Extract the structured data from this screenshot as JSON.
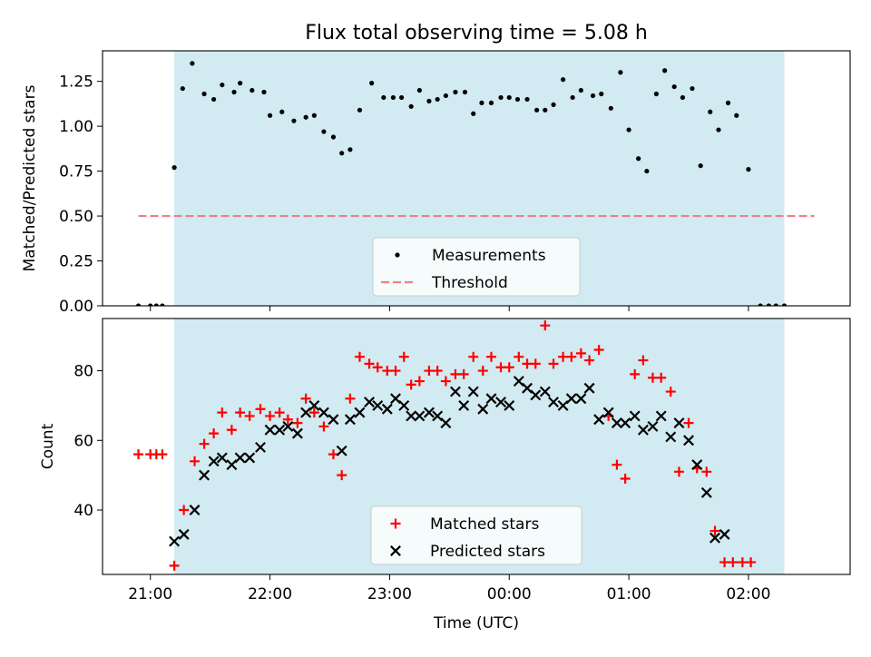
{
  "chart_data": {
    "title": "Flux total observing time = 5.08 h",
    "xlabel": "Time (UTC)",
    "x_unit": "hours, fractional, after midnight negative as hours before; tick labels in UTC",
    "xlim": [
      -3.4,
      2.85
    ],
    "xticks": [
      {
        "value": -3,
        "label": "21:00"
      },
      {
        "value": -2,
        "label": "22:00"
      },
      {
        "value": -1,
        "label": "23:00"
      },
      {
        "value": 0,
        "label": "00:00"
      },
      {
        "value": 1,
        "label": "01:00"
      },
      {
        "value": 2,
        "label": "02:00"
      }
    ],
    "shaded_span": {
      "x0": -2.8,
      "x1": 2.3,
      "color": "#add8e6"
    },
    "panels": [
      {
        "type": "scatter",
        "ylabel": "Matched/Predicted stars",
        "ylim": [
          0,
          1.42
        ],
        "yticks": [
          0.0,
          0.25,
          0.5,
          0.75,
          1.0,
          1.25
        ],
        "ytick_labels": [
          "0.00",
          "0.25",
          "0.50",
          "0.75",
          "1.00",
          "1.25"
        ],
        "legend": {
          "placement": "lower center",
          "entries": [
            "Measurements",
            "Threshold"
          ]
        },
        "threshold": {
          "name": "Threshold",
          "y": 0.5,
          "x0": -3.1,
          "x1": 2.55,
          "color": "#f08080"
        },
        "series": [
          {
            "name": "Measurements",
            "marker": "dot",
            "color": "#000000",
            "points": [
              [
                -3.1,
                0
              ],
              [
                -3.0,
                0
              ],
              [
                -2.95,
                0
              ],
              [
                -2.9,
                0
              ],
              [
                -2.8,
                0.77
              ],
              [
                -2.73,
                1.21
              ],
              [
                -2.65,
                1.35
              ],
              [
                -2.55,
                1.18
              ],
              [
                -2.47,
                1.15
              ],
              [
                -2.4,
                1.23
              ],
              [
                -2.3,
                1.19
              ],
              [
                -2.25,
                1.24
              ],
              [
                -2.15,
                1.2
              ],
              [
                -2.05,
                1.19
              ],
              [
                -2.0,
                1.06
              ],
              [
                -1.9,
                1.08
              ],
              [
                -1.8,
                1.03
              ],
              [
                -1.7,
                1.05
              ],
              [
                -1.63,
                1.06
              ],
              [
                -1.55,
                0.97
              ],
              [
                -1.47,
                0.94
              ],
              [
                -1.4,
                0.85
              ],
              [
                -1.33,
                0.87
              ],
              [
                -1.25,
                1.09
              ],
              [
                -1.15,
                1.24
              ],
              [
                -1.05,
                1.16
              ],
              [
                -0.97,
                1.16
              ],
              [
                -0.9,
                1.16
              ],
              [
                -0.82,
                1.11
              ],
              [
                -0.75,
                1.2
              ],
              [
                -0.67,
                1.14
              ],
              [
                -0.6,
                1.15
              ],
              [
                -0.53,
                1.17
              ],
              [
                -0.45,
                1.19
              ],
              [
                -0.37,
                1.19
              ],
              [
                -0.3,
                1.07
              ],
              [
                -0.23,
                1.13
              ],
              [
                -0.15,
                1.13
              ],
              [
                -0.07,
                1.16
              ],
              [
                0.0,
                1.16
              ],
              [
                0.07,
                1.15
              ],
              [
                0.15,
                1.15
              ],
              [
                0.23,
                1.09
              ],
              [
                0.3,
                1.09
              ],
              [
                0.37,
                1.12
              ],
              [
                0.45,
                1.26
              ],
              [
                0.53,
                1.16
              ],
              [
                0.6,
                1.2
              ],
              [
                0.7,
                1.17
              ],
              [
                0.77,
                1.18
              ],
              [
                0.85,
                1.1
              ],
              [
                0.93,
                1.3
              ],
              [
                1.0,
                0.98
              ],
              [
                1.08,
                0.82
              ],
              [
                1.15,
                0.75
              ],
              [
                1.23,
                1.18
              ],
              [
                1.3,
                1.31
              ],
              [
                1.38,
                1.22
              ],
              [
                1.45,
                1.16
              ],
              [
                1.53,
                1.21
              ],
              [
                1.6,
                0.78
              ],
              [
                1.68,
                1.08
              ],
              [
                1.75,
                0.98
              ],
              [
                1.83,
                1.13
              ],
              [
                1.9,
                1.06
              ],
              [
                2.0,
                0.76
              ],
              [
                2.1,
                0
              ],
              [
                2.17,
                0
              ],
              [
                2.23,
                0
              ],
              [
                2.3,
                0
              ]
            ]
          }
        ]
      },
      {
        "type": "scatter",
        "ylabel": "Count",
        "ylim": [
          21.5,
          95
        ],
        "yticks": [
          40,
          60,
          80
        ],
        "ytick_labels": [
          "40",
          "60",
          "80"
        ],
        "legend": {
          "placement": "lower center",
          "entries": [
            "Matched stars",
            "Predicted stars"
          ]
        },
        "series": [
          {
            "name": "Matched stars",
            "marker": "plus",
            "color": "#ff0000",
            "points": [
              [
                -3.1,
                56
              ],
              [
                -3.0,
                56
              ],
              [
                -2.95,
                56
              ],
              [
                -2.9,
                56
              ],
              [
                -2.8,
                24
              ],
              [
                -2.72,
                40
              ],
              [
                -2.63,
                54
              ],
              [
                -2.55,
                59
              ],
              [
                -2.47,
                62
              ],
              [
                -2.4,
                68
              ],
              [
                -2.32,
                63
              ],
              [
                -2.25,
                68
              ],
              [
                -2.17,
                67
              ],
              [
                -2.08,
                69
              ],
              [
                -2.0,
                67
              ],
              [
                -1.92,
                68
              ],
              [
                -1.85,
                66
              ],
              [
                -1.77,
                65
              ],
              [
                -1.7,
                72
              ],
              [
                -1.63,
                68
              ],
              [
                -1.55,
                64
              ],
              [
                -1.47,
                56
              ],
              [
                -1.4,
                50
              ],
              [
                -1.33,
                72
              ],
              [
                -1.25,
                84
              ],
              [
                -1.17,
                82
              ],
              [
                -1.1,
                81
              ],
              [
                -1.02,
                80
              ],
              [
                -0.95,
                80
              ],
              [
                -0.88,
                84
              ],
              [
                -0.82,
                76
              ],
              [
                -0.75,
                77
              ],
              [
                -0.67,
                80
              ],
              [
                -0.6,
                80
              ],
              [
                -0.53,
                77
              ],
              [
                -0.45,
                79
              ],
              [
                -0.38,
                79
              ],
              [
                -0.3,
                84
              ],
              [
                -0.22,
                80
              ],
              [
                -0.15,
                84
              ],
              [
                -0.07,
                81
              ],
              [
                0.0,
                81
              ],
              [
                0.08,
                84
              ],
              [
                0.15,
                82
              ],
              [
                0.22,
                82
              ],
              [
                0.3,
                93
              ],
              [
                0.37,
                82
              ],
              [
                0.45,
                84
              ],
              [
                0.52,
                84
              ],
              [
                0.6,
                85
              ],
              [
                0.67,
                83
              ],
              [
                0.75,
                86
              ],
              [
                0.83,
                67
              ],
              [
                0.9,
                53
              ],
              [
                0.97,
                49
              ],
              [
                1.05,
                79
              ],
              [
                1.12,
                83
              ],
              [
                1.2,
                78
              ],
              [
                1.27,
                78
              ],
              [
                1.35,
                74
              ],
              [
                1.42,
                51
              ],
              [
                1.5,
                65
              ],
              [
                1.57,
                52
              ],
              [
                1.65,
                51
              ],
              [
                1.72,
                34
              ],
              [
                1.8,
                25
              ],
              [
                1.87,
                25
              ],
              [
                1.95,
                25
              ],
              [
                2.02,
                25
              ]
            ]
          },
          {
            "name": "Predicted stars",
            "marker": "x",
            "color": "#000000",
            "points": [
              [
                -2.8,
                31
              ],
              [
                -2.72,
                33
              ],
              [
                -2.63,
                40
              ],
              [
                -2.55,
                50
              ],
              [
                -2.47,
                54
              ],
              [
                -2.4,
                55
              ],
              [
                -2.32,
                53
              ],
              [
                -2.25,
                55
              ],
              [
                -2.17,
                55
              ],
              [
                -2.08,
                58
              ],
              [
                -2.0,
                63
              ],
              [
                -1.92,
                63
              ],
              [
                -1.85,
                64
              ],
              [
                -1.77,
                62
              ],
              [
                -1.7,
                68
              ],
              [
                -1.63,
                70
              ],
              [
                -1.55,
                68
              ],
              [
                -1.47,
                66
              ],
              [
                -1.4,
                57
              ],
              [
                -1.33,
                66
              ],
              [
                -1.25,
                68
              ],
              [
                -1.17,
                71
              ],
              [
                -1.1,
                70
              ],
              [
                -1.02,
                69
              ],
              [
                -0.95,
                72
              ],
              [
                -0.88,
                70
              ],
              [
                -0.82,
                67
              ],
              [
                -0.75,
                67
              ],
              [
                -0.67,
                68
              ],
              [
                -0.6,
                67
              ],
              [
                -0.53,
                65
              ],
              [
                -0.45,
                74
              ],
              [
                -0.38,
                70
              ],
              [
                -0.3,
                74
              ],
              [
                -0.22,
                69
              ],
              [
                -0.15,
                72
              ],
              [
                -0.07,
                71
              ],
              [
                0.0,
                70
              ],
              [
                0.08,
                77
              ],
              [
                0.15,
                75
              ],
              [
                0.22,
                73
              ],
              [
                0.3,
                74
              ],
              [
                0.37,
                71
              ],
              [
                0.45,
                70
              ],
              [
                0.52,
                72
              ],
              [
                0.6,
                72
              ],
              [
                0.67,
                75
              ],
              [
                0.75,
                66
              ],
              [
                0.83,
                68
              ],
              [
                0.9,
                65
              ],
              [
                0.97,
                65
              ],
              [
                1.05,
                67
              ],
              [
                1.12,
                63
              ],
              [
                1.2,
                64
              ],
              [
                1.27,
                67
              ],
              [
                1.35,
                61
              ],
              [
                1.42,
                65
              ],
              [
                1.5,
                60
              ],
              [
                1.57,
                53
              ],
              [
                1.65,
                45
              ],
              [
                1.72,
                32
              ],
              [
                1.8,
                33
              ]
            ]
          }
        ]
      }
    ]
  }
}
